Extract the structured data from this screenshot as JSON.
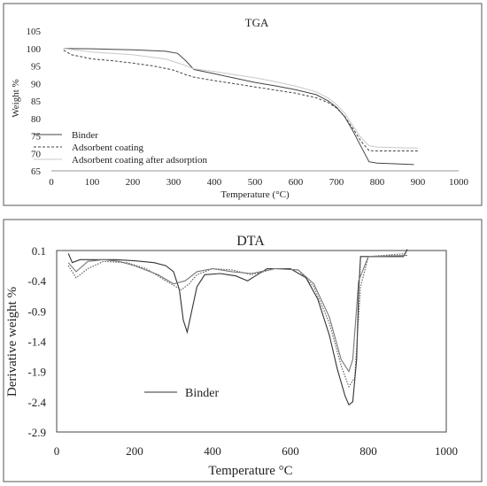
{
  "chart_data": [
    {
      "type": "line",
      "title": "TGA",
      "xlabel": "Temperature (°C)",
      "ylabel": "Weight %",
      "xlim": [
        0,
        1000
      ],
      "ylim": [
        65,
        105
      ],
      "xticks": [
        0,
        100,
        200,
        300,
        400,
        500,
        600,
        700,
        800,
        900,
        1000
      ],
      "yticks": [
        65,
        70,
        75,
        80,
        85,
        90,
        95,
        100,
        105
      ],
      "legend": "bottom-left",
      "series": [
        {
          "name": "Binder",
          "style": "solid",
          "color": "#444444",
          "x": [
            30,
            100,
            200,
            280,
            310,
            330,
            350,
            400,
            450,
            500,
            550,
            600,
            650,
            680,
            700,
            720,
            740,
            760,
            780,
            800,
            850,
            890
          ],
          "y": [
            100,
            99.9,
            99.6,
            99.2,
            98.6,
            96.5,
            94.0,
            92.8,
            91.5,
            90.3,
            89.3,
            88.2,
            86.8,
            85.0,
            83.2,
            80.5,
            76.5,
            72.0,
            67.6,
            67.2,
            67.0,
            66.8
          ]
        },
        {
          "name": "Adsorbent coating",
          "style": "dashed",
          "color": "#444444",
          "x": [
            30,
            50,
            100,
            150,
            200,
            250,
            300,
            330,
            350,
            400,
            450,
            500,
            550,
            600,
            650,
            680,
            700,
            720,
            740,
            760,
            780,
            800,
            850,
            900
          ],
          "y": [
            99.5,
            98.2,
            97.0,
            96.5,
            95.8,
            95.0,
            93.8,
            92.5,
            91.8,
            90.8,
            89.9,
            89.0,
            88.1,
            87.2,
            85.9,
            84.5,
            83.0,
            80.6,
            77.2,
            73.5,
            70.8,
            70.7,
            70.7,
            70.7
          ]
        },
        {
          "name": "Adsorbent coating after adsorption",
          "style": "solid",
          "color": "#c8c8c8",
          "x": [
            30,
            100,
            200,
            280,
            320,
            350,
            400,
            450,
            500,
            550,
            600,
            650,
            680,
            700,
            720,
            740,
            760,
            780,
            800,
            850,
            900
          ],
          "y": [
            100,
            99.0,
            98.2,
            97.0,
            95.5,
            94.2,
            93.4,
            92.5,
            91.6,
            90.5,
            89.2,
            87.6,
            85.8,
            84.0,
            81.5,
            78.0,
            74.5,
            72.2,
            71.8,
            71.6,
            71.5
          ]
        }
      ]
    },
    {
      "type": "line",
      "title": "DTA",
      "xlabel": "Temperature °C",
      "ylabel": "Derivative weight %",
      "xlim": [
        0,
        1000
      ],
      "ylim": [
        -2.9,
        0.1
      ],
      "xticks": [
        0,
        200,
        400,
        600,
        800,
        1000
      ],
      "yticks": [
        0.1,
        -0.4,
        -0.9,
        -1.4,
        -1.9,
        -2.4,
        -2.9
      ],
      "legend": "left",
      "series": [
        {
          "name": "Binder",
          "style": "solid",
          "color": "#333333",
          "x": [
            30,
            40,
            60,
            100,
            150,
            200,
            250,
            280,
            300,
            315,
            325,
            335,
            345,
            360,
            380,
            420,
            460,
            490,
            510,
            540,
            600,
            640,
            670,
            700,
            720,
            740,
            750,
            760,
            770,
            775,
            780,
            790,
            850,
            890,
            900
          ],
          "y": [
            0.05,
            -0.1,
            -0.05,
            -0.05,
            -0.05,
            -0.07,
            -0.1,
            -0.15,
            -0.25,
            -0.55,
            -1.05,
            -1.25,
            -0.95,
            -0.5,
            -0.3,
            -0.28,
            -0.32,
            -0.4,
            -0.32,
            -0.2,
            -0.2,
            -0.35,
            -0.7,
            -1.3,
            -1.85,
            -2.3,
            -2.45,
            -2.4,
            -1.7,
            -0.6,
            0.0,
            0.0,
            0.0,
            0.0,
            0.12
          ]
        },
        {
          "name": "",
          "style": "dotted",
          "color": "#555555",
          "x": [
            30,
            50,
            80,
            120,
            180,
            230,
            280,
            320,
            340,
            360,
            400,
            450,
            500,
            560,
            620,
            660,
            700,
            730,
            750,
            765,
            780,
            800,
            900
          ],
          "y": [
            -0.15,
            -0.35,
            -0.2,
            -0.08,
            -0.1,
            -0.2,
            -0.4,
            -0.55,
            -0.45,
            -0.3,
            -0.2,
            -0.22,
            -0.3,
            -0.2,
            -0.22,
            -0.5,
            -1.1,
            -1.8,
            -2.15,
            -2.0,
            -0.5,
            0.0,
            0.05
          ]
        },
        {
          "name": "",
          "style": "solid",
          "color": "#777777",
          "x": [
            30,
            50,
            80,
            120,
            160,
            200,
            260,
            300,
            330,
            360,
            400,
            450,
            500,
            560,
            620,
            660,
            700,
            730,
            750,
            760,
            775,
            800,
            900
          ],
          "y": [
            -0.1,
            -0.25,
            -0.08,
            -0.05,
            -0.08,
            -0.15,
            -0.3,
            -0.45,
            -0.4,
            -0.25,
            -0.2,
            -0.25,
            -0.28,
            -0.2,
            -0.22,
            -0.45,
            -1.0,
            -1.7,
            -1.9,
            -1.7,
            -0.4,
            0.0,
            0.02
          ]
        }
      ]
    }
  ]
}
